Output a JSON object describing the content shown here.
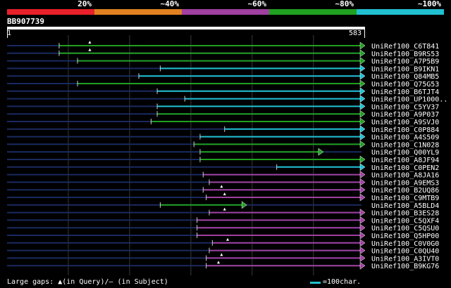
{
  "legend": {
    "labels": [
      "20%",
      "~40%",
      "~60%",
      "~80%",
      "~100%"
    ],
    "colors": [
      "#e8202a",
      "#e08020",
      "#a040a0",
      "#20a020",
      "#20c0d0"
    ]
  },
  "query": {
    "id": "BB907739",
    "start": "1",
    "end": "583"
  },
  "hits": [
    {
      "label": "UniRef100_C6T841",
      "start": 85,
      "end": 583,
      "color": "#20a020",
      "marks": [
        135
      ]
    },
    {
      "label": "UniRef100_B9RS53",
      "start": 85,
      "end": 583,
      "color": "#20a020",
      "marks": [
        135
      ]
    },
    {
      "label": "UniRef100_A7P5B9",
      "start": 115,
      "end": 583,
      "color": "#20a020",
      "marks": []
    },
    {
      "label": "UniRef100_B9IKN1",
      "start": 250,
      "end": 583,
      "color": "#20c0d0",
      "marks": []
    },
    {
      "label": "UniRef100_Q84MB5",
      "start": 215,
      "end": 583,
      "color": "#20c0d0",
      "marks": []
    },
    {
      "label": "UniRef100_Q75G53",
      "start": 115,
      "end": 583,
      "color": "#20a020",
      "marks": []
    },
    {
      "label": "UniRef100_B6TJT4",
      "start": 245,
      "end": 583,
      "color": "#20c0d0",
      "marks": []
    },
    {
      "label": "UniRef100_UP1000..",
      "start": 290,
      "end": 583,
      "color": "#20c0d0",
      "marks": []
    },
    {
      "label": "UniRef100_C5YV37",
      "start": 245,
      "end": 583,
      "color": "#20c0d0",
      "marks": []
    },
    {
      "label": "UniRef100_A9P037",
      "start": 245,
      "end": 583,
      "color": "#20a020",
      "marks": []
    },
    {
      "label": "UniRef100_A9SVJ0",
      "start": 235,
      "end": 583,
      "color": "#20a020",
      "marks": []
    },
    {
      "label": "UniRef100_C0P884",
      "start": 355,
      "end": 583,
      "color": "#20c0d0",
      "marks": []
    },
    {
      "label": "UniRef100_A4S509",
      "start": 315,
      "end": 583,
      "color": "#20c0d0",
      "marks": []
    },
    {
      "label": "UniRef100_C1N028",
      "start": 305,
      "end": 583,
      "color": "#20a020",
      "marks": []
    },
    {
      "label": "UniRef100_Q00YL9",
      "start": 315,
      "end": 515,
      "color": "#20a020",
      "marks": []
    },
    {
      "label": "UniRef100_A8JF94",
      "start": 315,
      "end": 583,
      "color": "#20a020",
      "marks": []
    },
    {
      "label": "UniRef100_C0PEN2",
      "start": 440,
      "end": 583,
      "color": "#20c0d0",
      "marks": []
    },
    {
      "label": "UniRef100_A8JA16",
      "start": 320,
      "end": 583,
      "color": "#a040a0",
      "marks": []
    },
    {
      "label": "UniRef100_A9EMS3",
      "start": 330,
      "end": 583,
      "color": "#a040a0",
      "marks": []
    },
    {
      "label": "UniRef100_B2UQ86",
      "start": 320,
      "end": 583,
      "color": "#a040a0",
      "marks": [
        350
      ]
    },
    {
      "label": "UniRef100_C9MTB9",
      "start": 325,
      "end": 583,
      "color": "#a040a0",
      "marks": [
        355
      ]
    },
    {
      "label": "UniRef100_A5BLD4",
      "start": 250,
      "end": 390,
      "color": "#20a020",
      "marks": []
    },
    {
      "label": "UniRef100_B3ES28",
      "start": 330,
      "end": 583,
      "color": "#a040a0",
      "marks": [
        355
      ]
    },
    {
      "label": "UniRef100_C5QXF4",
      "start": 310,
      "end": 583,
      "color": "#a040a0",
      "marks": []
    },
    {
      "label": "UniRef100_C5QSU0",
      "start": 310,
      "end": 583,
      "color": "#a040a0",
      "marks": []
    },
    {
      "label": "UniRef100_Q5HP00",
      "start": 310,
      "end": 583,
      "color": "#a040a0",
      "marks": []
    },
    {
      "label": "UniRef100_C0V0G0",
      "start": 335,
      "end": 583,
      "color": "#a040a0",
      "marks": [
        360
      ]
    },
    {
      "label": "UniRef100_C0QU40",
      "start": 330,
      "end": 583,
      "color": "#a040a0",
      "marks": []
    },
    {
      "label": "UniRef100_A3IVT0",
      "start": 325,
      "end": 583,
      "color": "#a040a0",
      "marks": [
        350
      ]
    },
    {
      "label": "UniRef100_B9KG76",
      "start": 325,
      "end": 583,
      "color": "#a040a0",
      "marks": [
        345
      ]
    }
  ],
  "footer": {
    "gaps_text": "Large gaps: ▲(in Query)/– (in Subject)",
    "scale_text": "=100char."
  }
}
